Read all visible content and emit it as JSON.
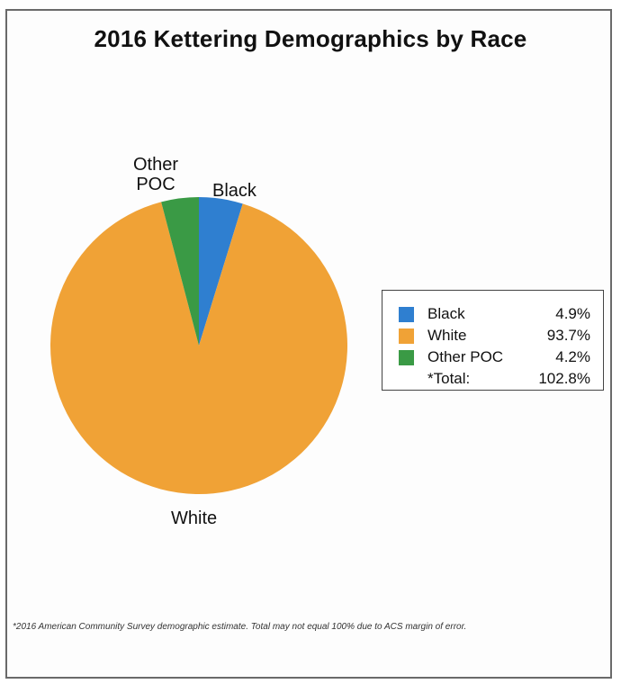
{
  "chart_data": {
    "type": "pie",
    "title": "2016 Kettering Demographics by Race",
    "slices": [
      {
        "label": "Black",
        "legend_label": "Black",
        "value": 4.9,
        "value_label": "4.9%",
        "color": "#2f7fd0"
      },
      {
        "label": "White",
        "legend_label": "White",
        "value": 93.7,
        "value_label": "93.7%",
        "color": "#f0a236"
      },
      {
        "label": "Other\nPOC",
        "legend_label": "Other POC",
        "value": 4.2,
        "value_label": "4.2%",
        "color": "#3a9a45"
      }
    ],
    "total": {
      "label": "*Total:",
      "value": 102.8,
      "value_label": "102.8%"
    },
    "legend_position": "right",
    "footnote": "*2016 American Community Survey demographic estimate. Total may not equal 100% due to ACS margin of error."
  }
}
